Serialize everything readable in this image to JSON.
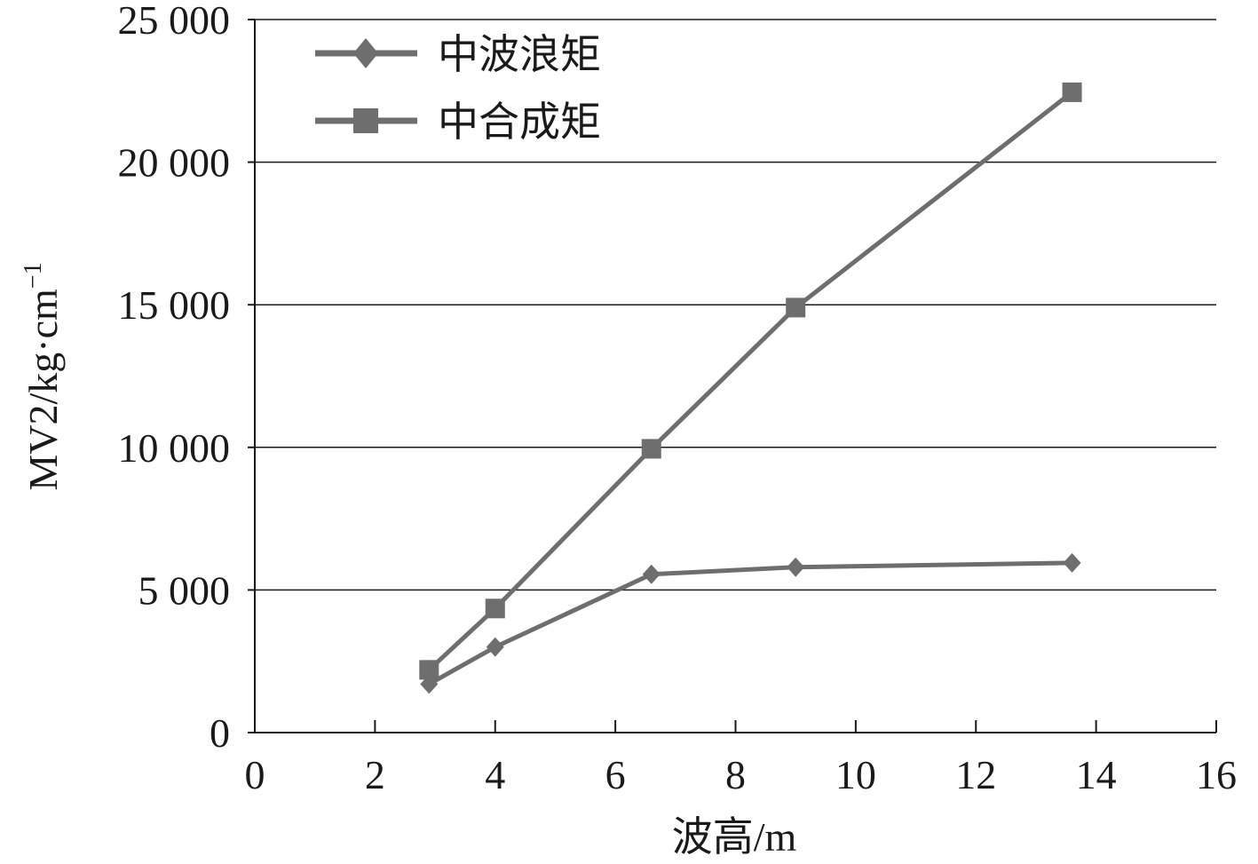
{
  "chart_data": {
    "type": "line",
    "xlabel": "波高/m",
    "ylabel": "MV2/kg·cm",
    "ylabel_sup": "−1",
    "xlim": [
      0,
      16
    ],
    "ylim": [
      0,
      25000
    ],
    "x_ticks": [
      0,
      2,
      4,
      6,
      8,
      10,
      12,
      14,
      16
    ],
    "x_tick_labels": [
      "0",
      "2",
      "4",
      "6",
      "8",
      "10",
      "12",
      "14",
      "16"
    ],
    "y_ticks": [
      0,
      5000,
      10000,
      15000,
      20000,
      25000
    ],
    "y_tick_labels": [
      "0",
      "5 000",
      "10 000",
      "15 000",
      "20 000",
      "25 000"
    ],
    "grid": "horizontal",
    "legend_position": "top-left",
    "series": [
      {
        "name": "中波浪矩",
        "marker": "diamond",
        "color": "#6e6e6e",
        "x": [
          2.9,
          4.0,
          6.6,
          9.0,
          13.6
        ],
        "values": [
          1700,
          3000,
          5550,
          5800,
          5950
        ]
      },
      {
        "name": "中合成矩",
        "marker": "square",
        "color": "#6e6e6e",
        "x": [
          2.9,
          4.0,
          6.6,
          9.0,
          13.6
        ],
        "values": [
          2200,
          4350,
          9950,
          14900,
          22450
        ]
      }
    ]
  }
}
